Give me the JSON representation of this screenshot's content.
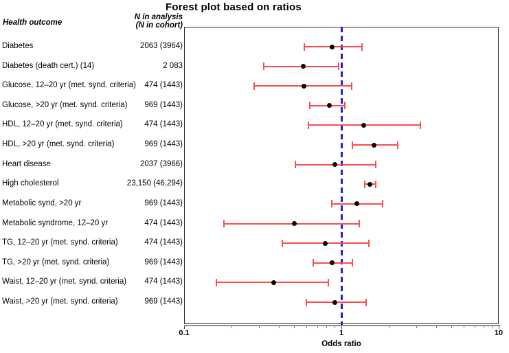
{
  "title": "Forest plot based on ratios",
  "columns": {
    "health_outcome": "Health outcome",
    "n_header_line1": "N in analysis",
    "n_header_line2": "(N in cohort)"
  },
  "chart_data": {
    "type": "forest",
    "title": "Forest plot based on ratios",
    "xlabel": "Odds ratio",
    "xscale": "log",
    "xlim": [
      0.1,
      10
    ],
    "x_major_ticks": [
      0.1,
      1,
      10
    ],
    "x_major_tick_labels": [
      "0.1",
      "1",
      "10"
    ],
    "x_minor_ticks": [
      0.2,
      0.3,
      0.4,
      0.5,
      0.6,
      0.7,
      0.8,
      0.9,
      2,
      3,
      4,
      5,
      6,
      7,
      8,
      9
    ],
    "reference_line": 1,
    "grid": false,
    "colors": {
      "ci": "#FA4D4D",
      "marker": "#000000",
      "reference": "#2222CC",
      "axis": "#8a8a8a"
    },
    "rows": [
      {
        "label": "Diabetes",
        "n": "2063 (3964)",
        "or": 0.87,
        "ci_low": 0.58,
        "ci_high": 1.35
      },
      {
        "label": "Diabetes (death cert.) (14)",
        "n": "2 083",
        "or": 0.57,
        "ci_low": 0.32,
        "ci_high": 0.96
      },
      {
        "label": "Glucose, 12–20 yr (met. synd. criteria)",
        "n": "474 (1443)",
        "or": 0.58,
        "ci_low": 0.28,
        "ci_high": 1.16
      },
      {
        "label": "Glucose, >20 yr (met. synd. criteria)",
        "n": "969 (1443)",
        "or": 0.84,
        "ci_low": 0.63,
        "ci_high": 1.05
      },
      {
        "label": "HDL, 12–20 yr (met. synd. criteria)",
        "n": "474 (1443)",
        "or": 1.39,
        "ci_low": 0.62,
        "ci_high": 3.18
      },
      {
        "label": "HDL, >20 yr (met. synd. criteria)",
        "n": "969 (1443)",
        "or": 1.62,
        "ci_low": 1.17,
        "ci_high": 2.28
      },
      {
        "label": "Heart disease",
        "n": "2037 (3966)",
        "or": 0.91,
        "ci_low": 0.51,
        "ci_high": 1.65
      },
      {
        "label": "High cholesterol",
        "n": "23,150 (46,294)",
        "or": 1.52,
        "ci_low": 1.41,
        "ci_high": 1.65
      },
      {
        "label": "Metabolic synd, >20 yr",
        "n": "969 (1443)",
        "or": 1.26,
        "ci_low": 0.87,
        "ci_high": 1.83
      },
      {
        "label": "Metabolic syndrome, 12–20 yr",
        "n": "474 (1443)",
        "or": 0.5,
        "ci_low": 0.18,
        "ci_high": 1.3
      },
      {
        "label": "TG, 12–20 yr (met. synd. criteria)",
        "n": "474 (1443)",
        "or": 0.79,
        "ci_low": 0.42,
        "ci_high": 1.5
      },
      {
        "label": "TG, >20 yr (met. synd. criteria)",
        "n": "969 (1443)",
        "or": 0.87,
        "ci_low": 0.66,
        "ci_high": 1.17
      },
      {
        "label": "Waist, 12–20 yr (met. synd. criteria)",
        "n": "474 (1443)",
        "or": 0.37,
        "ci_low": 0.16,
        "ci_high": 0.83
      },
      {
        "label": "Waist, >20 yr (met. synd. criteria)",
        "n": "969 (1443)",
        "or": 0.91,
        "ci_low": 0.6,
        "ci_high": 1.44
      }
    ]
  }
}
